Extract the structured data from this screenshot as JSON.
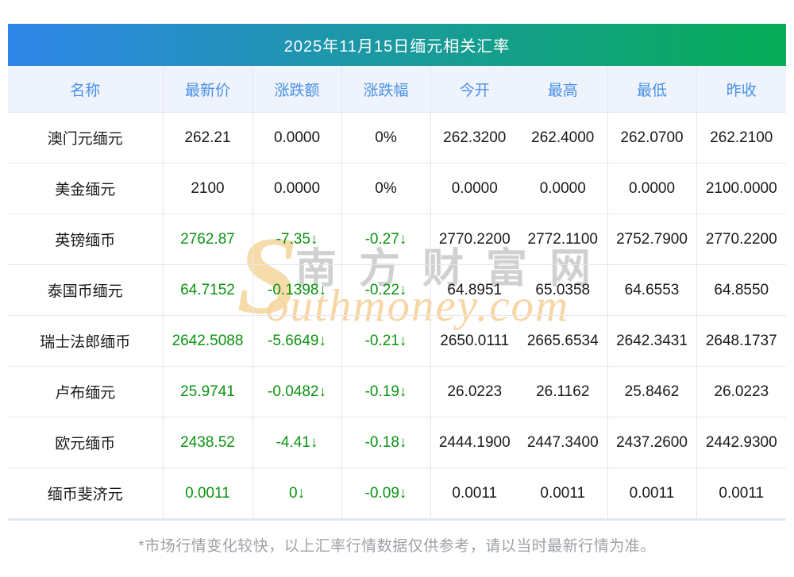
{
  "title": "2025年11月15日缅元相关汇率",
  "columns": [
    "名称",
    "最新价",
    "涨跌额",
    "涨跌幅",
    "今开",
    "最高",
    "最低",
    "昨收"
  ],
  "rows": [
    {
      "name": "澳门元缅元",
      "latest": "262.21",
      "change": "0.0000",
      "pct": "0%",
      "open": "262.3200",
      "high": "262.4000",
      "low": "262.0700",
      "prev": "262.2100",
      "trend": "flat"
    },
    {
      "name": "美金缅元",
      "latest": "2100",
      "change": "0.0000",
      "pct": "0%",
      "open": "0.0000",
      "high": "0.0000",
      "low": "0.0000",
      "prev": "2100.0000",
      "trend": "flat"
    },
    {
      "name": "英镑缅币",
      "latest": "2762.87",
      "change": "-7.35↓",
      "pct": "-0.27↓",
      "open": "2770.2200",
      "high": "2772.1100",
      "low": "2752.7900",
      "prev": "2770.2200",
      "trend": "down"
    },
    {
      "name": "泰国币缅元",
      "latest": "64.7152",
      "change": "-0.1398↓",
      "pct": "-0.22↓",
      "open": "64.8951",
      "high": "65.0358",
      "low": "64.6553",
      "prev": "64.8550",
      "trend": "down"
    },
    {
      "name": "瑞士法郎缅币",
      "latest": "2642.5088",
      "change": "-5.6649↓",
      "pct": "-0.21↓",
      "open": "2650.0111",
      "high": "2665.6534",
      "low": "2642.3431",
      "prev": "2648.1737",
      "trend": "down"
    },
    {
      "name": "卢布缅元",
      "latest": "25.9741",
      "change": "-0.0482↓",
      "pct": "-0.19↓",
      "open": "26.0223",
      "high": "26.1162",
      "low": "25.8462",
      "prev": "26.0223",
      "trend": "down"
    },
    {
      "name": "欧元缅币",
      "latest": "2438.52",
      "change": "-4.41↓",
      "pct": "-0.18↓",
      "open": "2444.1900",
      "high": "2447.3400",
      "low": "2437.2600",
      "prev": "2442.9300",
      "trend": "down"
    },
    {
      "name": "缅币斐济元",
      "latest": "0.0011",
      "change": "0↓",
      "pct": "-0.09↓",
      "open": "0.0011",
      "high": "0.0011",
      "low": "0.0011",
      "prev": "0.0011",
      "trend": "down"
    }
  ],
  "footer": "*市场行情变化较快，以上汇率行情数据仅供参考，请以当时最新行情为准。",
  "watermark": {
    "initial": "S",
    "cn": "南方财富网",
    "en": "outhmoney.com"
  },
  "colors": {
    "title_gradient_left": "#2F85E8",
    "title_gradient_right": "#06AC56",
    "header_bg": "#EFF4FC",
    "header_text": "#4A90E8",
    "down_green": "#0B9412",
    "body_text": "#1A1A1A",
    "grid_line": "#E4E7F0",
    "footer_text": "#9DA0A6",
    "watermark_orange": "#F7D39C",
    "watermark_gray": "#969696"
  },
  "chart_data": {
    "type": "table",
    "title": "2025年11月15日缅元相关汇率",
    "columns": [
      "名称",
      "最新价",
      "涨跌额",
      "涨跌幅",
      "今开",
      "最高",
      "最低",
      "昨收"
    ],
    "rows": [
      [
        "澳门元缅元",
        "262.21",
        "0.0000",
        "0%",
        "262.3200",
        "262.4000",
        "262.0700",
        "262.2100"
      ],
      [
        "美金缅元",
        "2100",
        "0.0000",
        "0%",
        "0.0000",
        "0.0000",
        "0.0000",
        "2100.0000"
      ],
      [
        "英镑缅币",
        "2762.87",
        "-7.35↓",
        "-0.27↓",
        "2770.2200",
        "2772.1100",
        "2752.7900",
        "2770.2200"
      ],
      [
        "泰国币缅元",
        "64.7152",
        "-0.1398↓",
        "-0.22↓",
        "64.8951",
        "65.0358",
        "64.6553",
        "64.8550"
      ],
      [
        "瑞士法郎缅币",
        "2642.5088",
        "-5.6649↓",
        "-0.21↓",
        "2650.0111",
        "2665.6534",
        "2642.3431",
        "2648.1737"
      ],
      [
        "卢布缅元",
        "25.9741",
        "-0.0482↓",
        "-0.19↓",
        "26.0223",
        "26.1162",
        "25.8462",
        "26.0223"
      ],
      [
        "欧元缅币",
        "2438.52",
        "-4.41↓",
        "-0.18↓",
        "2444.1900",
        "2447.3400",
        "2437.2600",
        "2442.9300"
      ],
      [
        "缅币斐济元",
        "0.0011",
        "0↓",
        "-0.09↓",
        "0.0011",
        "0.0011",
        "0.0011",
        "0.0011"
      ]
    ]
  }
}
